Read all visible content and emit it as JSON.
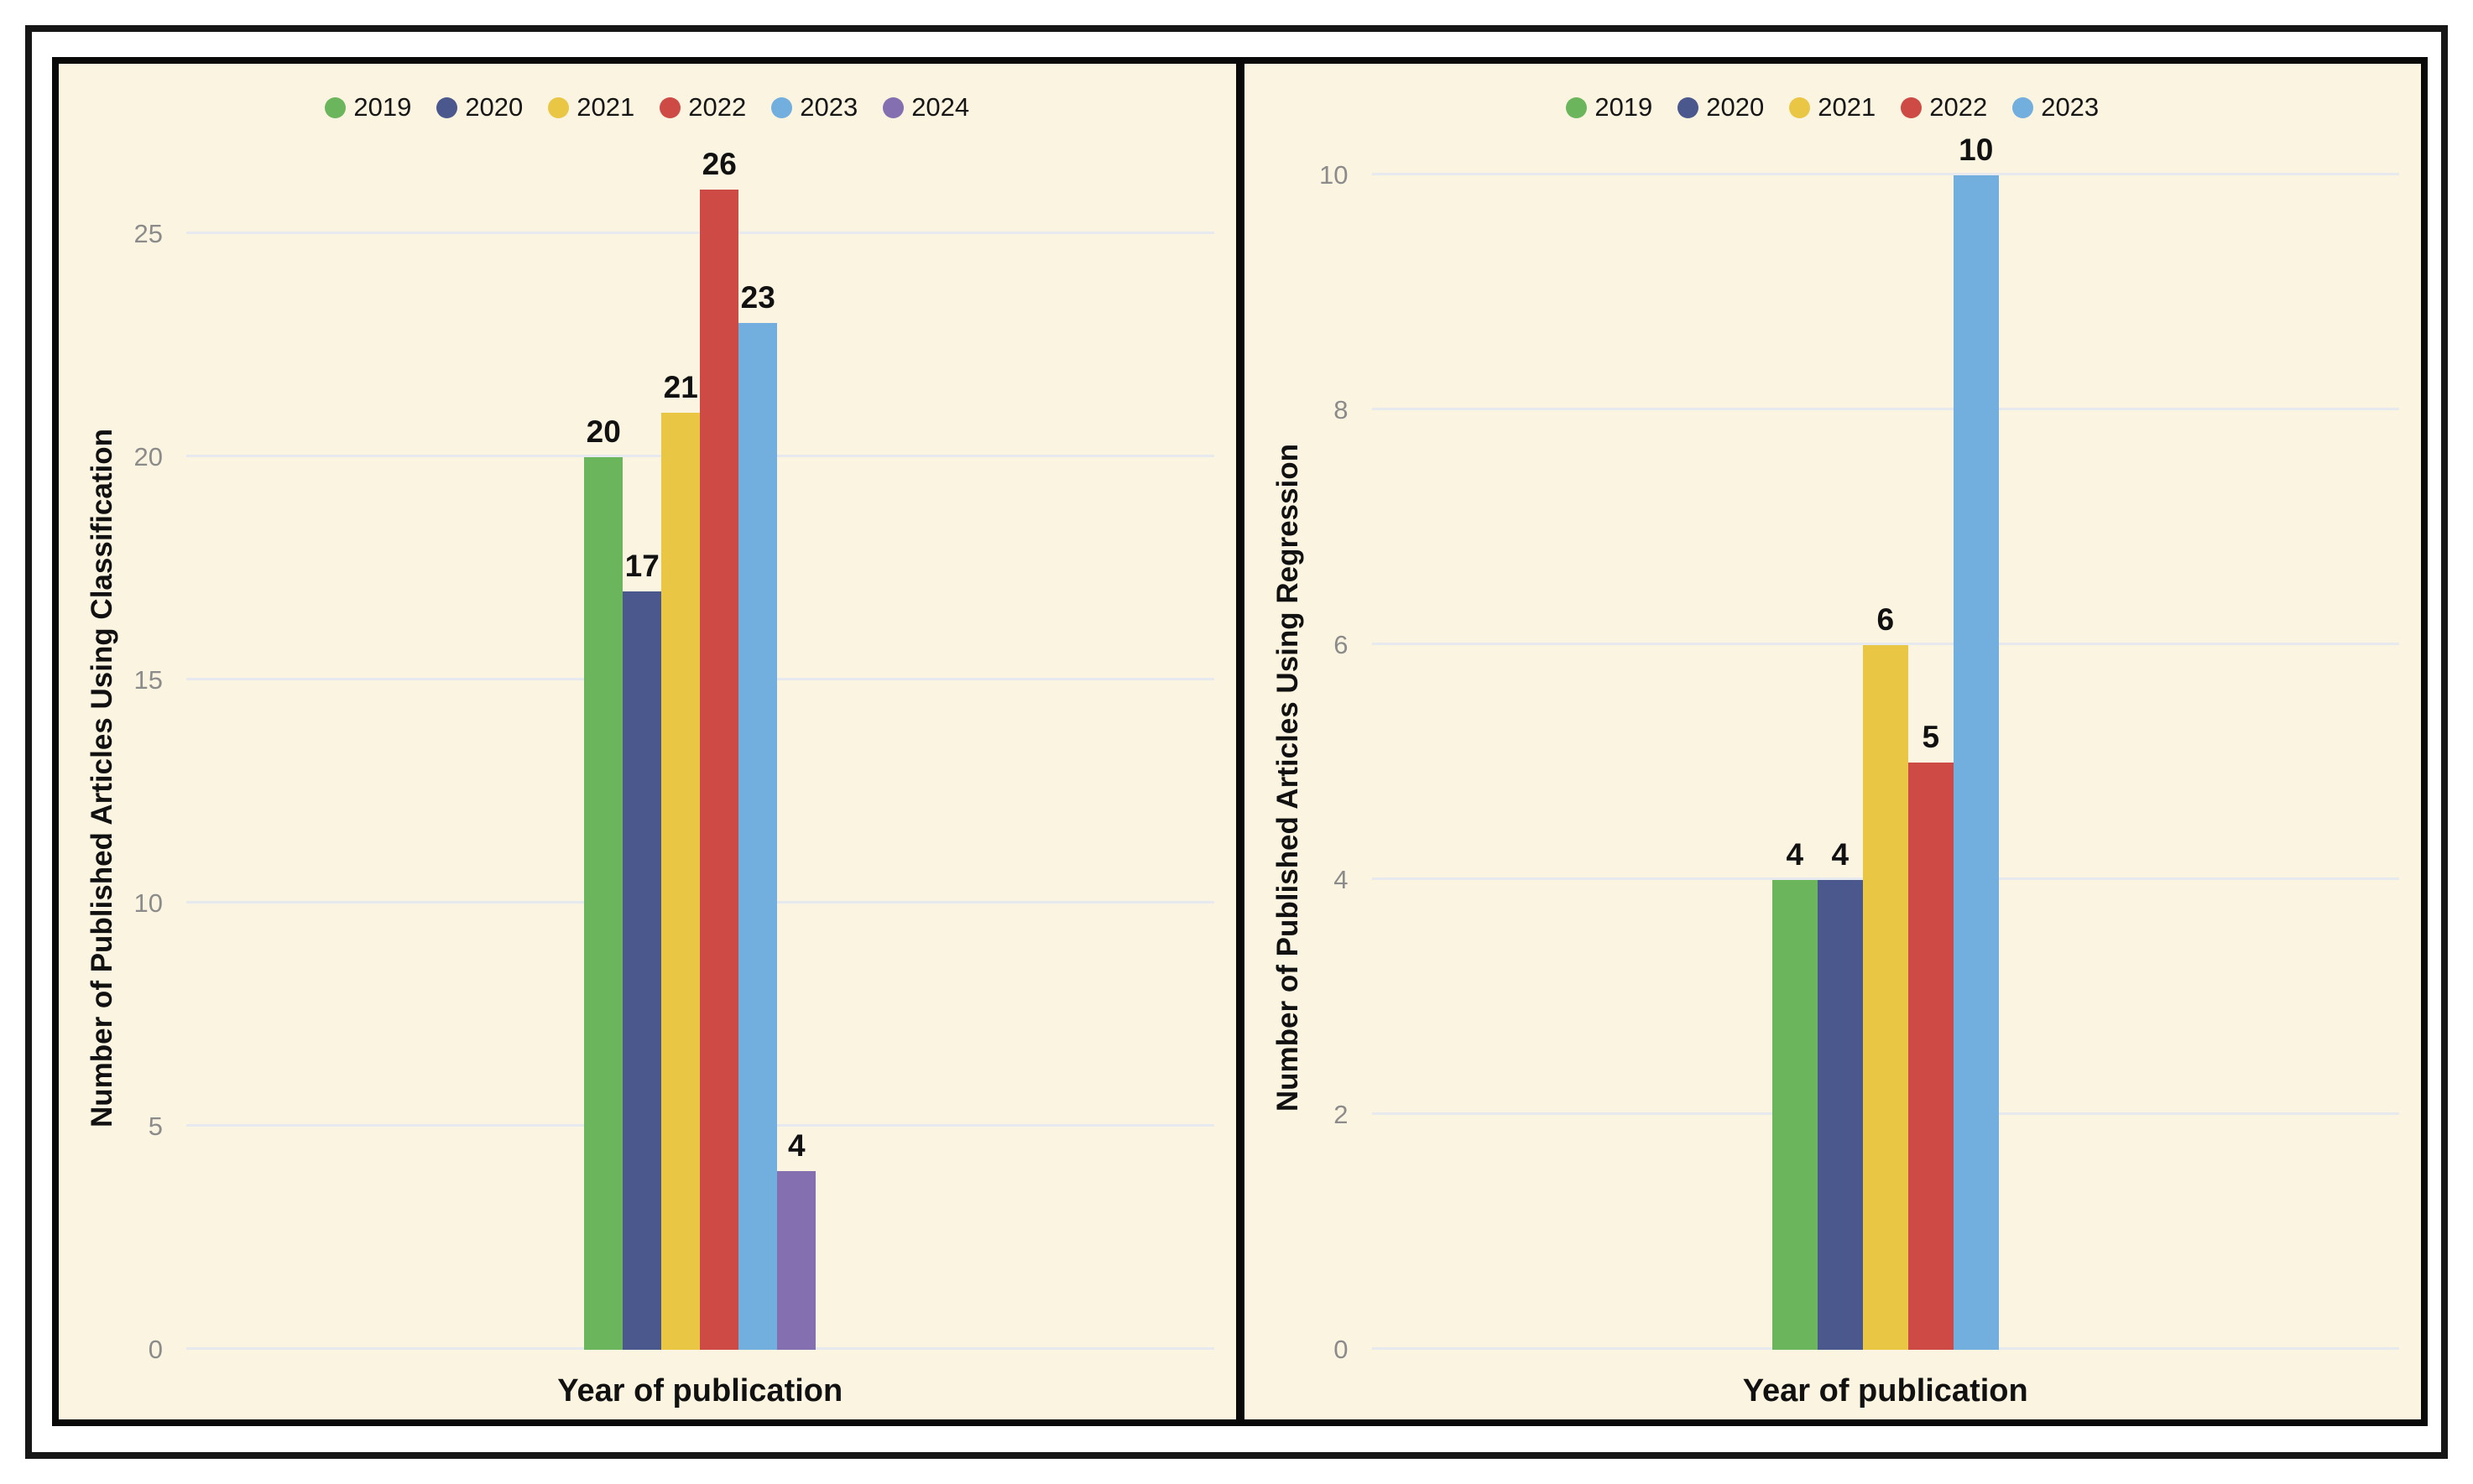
{
  "colors": {
    "background": "#FBF4E0",
    "gridline": "#E6E9ED",
    "tick_text": "#8B8B8B",
    "label_text": "#111111",
    "frame_border": "#161616",
    "panel_border": "#090909"
  },
  "chart_data": [
    {
      "type": "bar",
      "title": "",
      "xlabel": "Year of publication",
      "ylabel": "Number of Published Articles Using Classification",
      "categories": [
        "2019",
        "2020",
        "2021",
        "2022",
        "2023",
        "2024"
      ],
      "values": [
        20,
        17,
        21,
        26,
        23,
        4
      ],
      "data_labels": [
        "20",
        "17",
        "21",
        "26",
        "23",
        "4"
      ],
      "series_colors": [
        "#6BB55C",
        "#4B588E",
        "#EAC645",
        "#CE4B45",
        "#72AEDE",
        "#8470B1"
      ],
      "yticks": [
        0,
        5,
        10,
        15,
        20,
        25
      ],
      "ylim": [
        0,
        26
      ],
      "grid": true,
      "legend_position": "top"
    },
    {
      "type": "bar",
      "title": "",
      "xlabel": "Year of publication",
      "ylabel": "Number of Published Articles Using Regression",
      "categories": [
        "2019",
        "2020",
        "2021",
        "2022",
        "2023"
      ],
      "values": [
        4,
        4,
        6,
        5,
        10
      ],
      "data_labels": [
        "4",
        "4",
        "6",
        "5",
        "10"
      ],
      "series_colors": [
        "#6BB55C",
        "#4B588E",
        "#EAC645",
        "#CE4B45",
        "#72AEDE"
      ],
      "yticks": [
        0,
        2,
        4,
        6,
        8,
        10
      ],
      "ylim": [
        0,
        10
      ],
      "grid": true,
      "legend_position": "top"
    }
  ]
}
